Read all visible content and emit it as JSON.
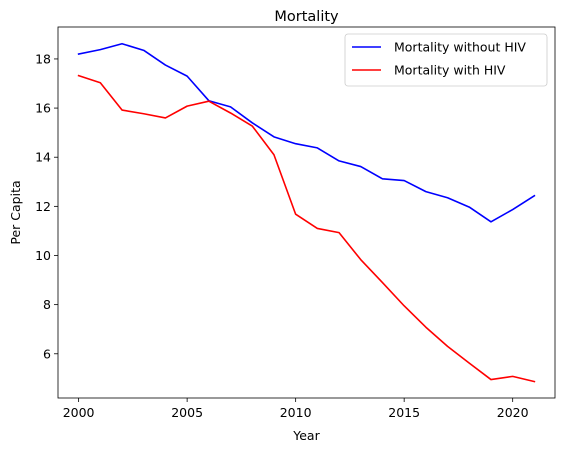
{
  "chart_data": {
    "type": "line",
    "title": "Mortality",
    "xlabel": "Year",
    "ylabel": "Per Capita",
    "x": [
      2000,
      2001,
      2002,
      2003,
      2004,
      2005,
      2006,
      2007,
      2008,
      2009,
      2010,
      2011,
      2012,
      2013,
      2014,
      2015,
      2016,
      2017,
      2018,
      2019,
      2020,
      2021
    ],
    "series": [
      {
        "name": "Mortality without HIV",
        "color": "#0000ff",
        "values": [
          18.2,
          18.38,
          18.62,
          18.35,
          17.75,
          17.3,
          16.3,
          16.05,
          15.4,
          14.83,
          14.55,
          14.38,
          13.85,
          13.62,
          13.12,
          13.05,
          12.6,
          12.35,
          11.97,
          11.37,
          11.87,
          12.43
        ]
      },
      {
        "name": "Mortality with HIV",
        "color": "#ff0000",
        "values": [
          17.32,
          17.03,
          15.92,
          15.77,
          15.6,
          16.08,
          16.28,
          15.8,
          15.27,
          14.1,
          11.68,
          11.1,
          10.93,
          9.83,
          8.9,
          7.95,
          7.08,
          6.3,
          5.62,
          4.95,
          5.08,
          4.87
        ]
      }
    ],
    "xlim": [
      1999.05,
      2021.95
    ],
    "ylim": [
      4.2,
      19.3
    ],
    "xticks": [
      2000,
      2005,
      2010,
      2015,
      2020
    ],
    "yticks": [
      6,
      8,
      10,
      12,
      14,
      16,
      18
    ],
    "legend_position": "top-right",
    "grid": false
  }
}
